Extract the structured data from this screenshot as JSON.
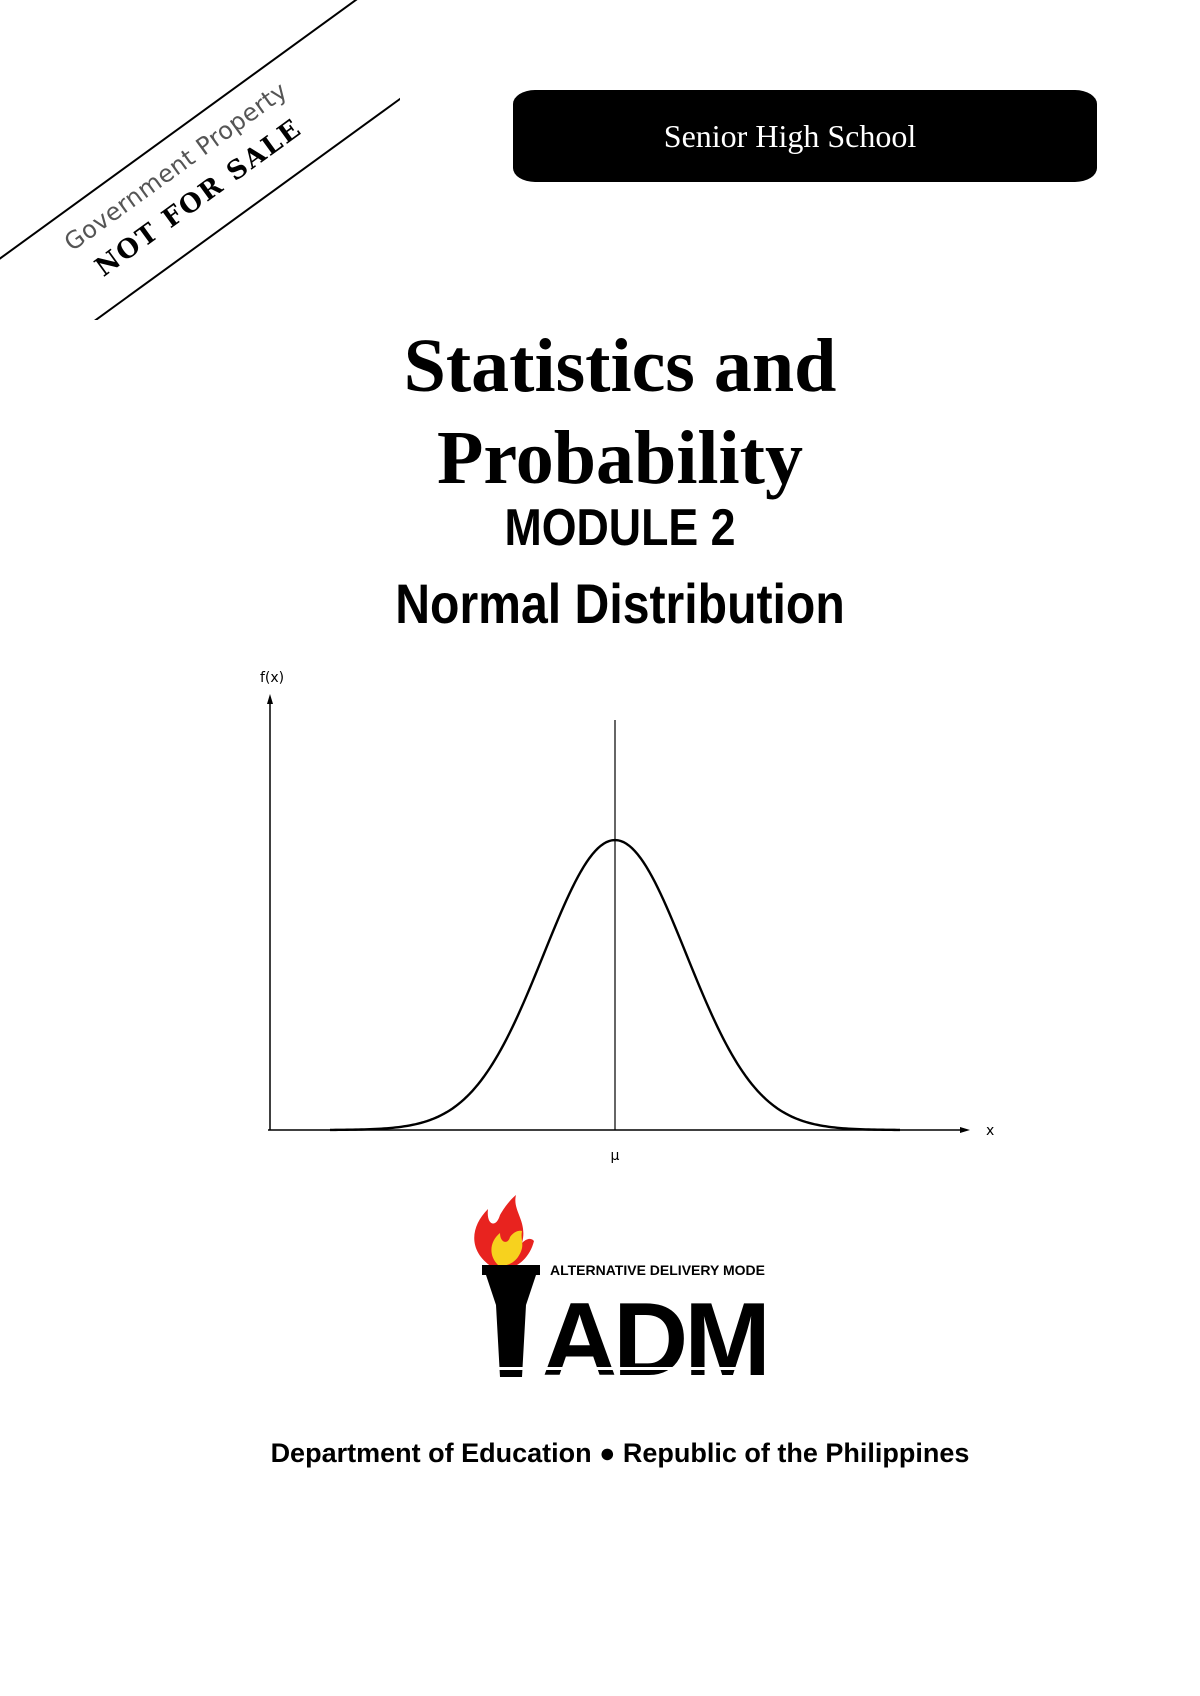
{
  "ribbon": {
    "line1": "Government Property",
    "line2": "NOT FOR SALE"
  },
  "banner": {
    "label": "Senior High School"
  },
  "title": {
    "line1": "Statistics and",
    "line2": "Probability",
    "module": "MODULE 2",
    "topic": "Normal Distribution"
  },
  "chart_data": {
    "type": "line",
    "ylabel": "f(x)",
    "xlabel": "x",
    "x_ticks": [
      "μ"
    ],
    "mean_line": true,
    "series": [
      {
        "x": [
          -3.5,
          -3,
          -2.5,
          -2,
          -1.5,
          -1,
          -0.5,
          0,
          0.5,
          1,
          1.5,
          2,
          2.5,
          3,
          3.5
        ],
        "values": [
          0.001,
          0.004,
          0.018,
          0.054,
          0.13,
          0.242,
          0.352,
          0.399,
          0.352,
          0.242,
          0.13,
          0.054,
          0.018,
          0.004,
          0.001
        ]
      }
    ]
  },
  "logo": {
    "tagline": "ALTERNATIVE DELIVERY MODE",
    "letters": "ADM",
    "flame_colors": [
      "#e8231f",
      "#f7d21e"
    ]
  },
  "footer": {
    "text": "Department of Education ● Republic of the Philippines"
  }
}
